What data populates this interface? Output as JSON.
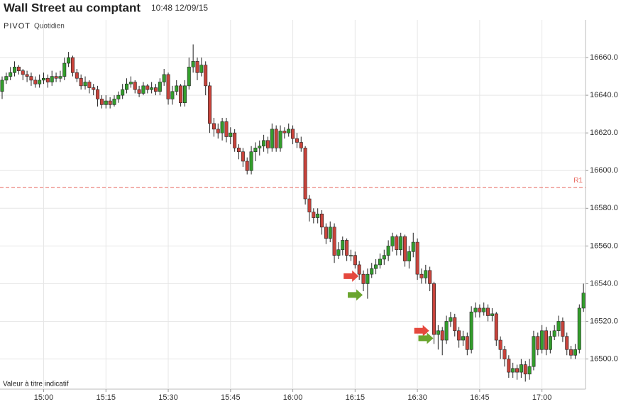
{
  "header": {
    "title": "Wall Street au comptant",
    "timestamp": "10:48 12/09/15",
    "indicator": "PIVOT",
    "period": "Quotidien"
  },
  "footer": "Valeur à titre indicatif",
  "chart_data": {
    "type": "candlestick",
    "x": [
      "14:50",
      "14:51",
      "14:52",
      "14:53",
      "14:54",
      "14:55",
      "14:56",
      "14:57",
      "14:58",
      "14:59",
      "15:00",
      "15:01",
      "15:02",
      "15:03",
      "15:04",
      "15:05",
      "15:06",
      "15:07",
      "15:08",
      "15:09",
      "15:10",
      "15:11",
      "15:12",
      "15:13",
      "15:14",
      "15:15",
      "15:16",
      "15:17",
      "15:18",
      "15:19",
      "15:20",
      "15:21",
      "15:22",
      "15:23",
      "15:24",
      "15:25",
      "15:26",
      "15:27",
      "15:28",
      "15:29",
      "15:30",
      "15:31",
      "15:32",
      "15:33",
      "15:34",
      "15:35",
      "15:36",
      "15:37",
      "15:38",
      "15:39",
      "15:40",
      "15:41",
      "15:42",
      "15:43",
      "15:44",
      "15:45",
      "15:46",
      "15:47",
      "15:48",
      "15:49",
      "15:50",
      "15:51",
      "15:52",
      "15:53",
      "15:54",
      "15:55",
      "15:56",
      "15:57",
      "15:58",
      "15:59",
      "16:00",
      "16:01",
      "16:02",
      "16:03",
      "16:04",
      "16:05",
      "16:06",
      "16:07",
      "16:08",
      "16:09",
      "16:10",
      "16:11",
      "16:12",
      "16:13",
      "16:14",
      "16:15",
      "16:16",
      "16:17",
      "16:18",
      "16:19",
      "16:20",
      "16:21",
      "16:22",
      "16:23",
      "16:24",
      "16:25",
      "16:26",
      "16:27",
      "16:28",
      "16:29",
      "16:30",
      "16:31",
      "16:32",
      "16:33",
      "16:34",
      "16:35",
      "16:36",
      "16:37",
      "16:38",
      "16:39",
      "16:40",
      "16:41",
      "16:42",
      "16:43",
      "16:44",
      "16:45",
      "16:46",
      "16:47",
      "16:48",
      "16:49",
      "16:50",
      "16:51",
      "16:52",
      "16:53",
      "16:54",
      "16:55",
      "16:56",
      "16:57",
      "16:58",
      "16:59",
      "17:00",
      "17:01",
      "17:02",
      "17:03",
      "17:04",
      "17:05",
      "17:06",
      "17:07",
      "17:08",
      "17:09",
      "17:10"
    ],
    "open": [
      16642,
      16648,
      16650,
      16652,
      16655,
      16653,
      16651,
      16650,
      16648,
      16646,
      16648,
      16649,
      16647,
      16650,
      16649,
      16650,
      16657,
      16660,
      16652,
      16649,
      16645,
      16647,
      16644,
      16643,
      16638,
      16635,
      16637,
      16635,
      16638,
      16640,
      16643,
      16646,
      16647,
      16643,
      16641,
      16645,
      16643,
      16644,
      16642,
      16647,
      16651,
      16638,
      16642,
      16645,
      16636,
      16645,
      16655,
      16658,
      16652,
      16656,
      16645,
      16625,
      16622,
      16620,
      16626,
      16618,
      16620,
      16612,
      16610,
      16605,
      16600,
      16610,
      16612,
      16613,
      16616,
      16612,
      16622,
      16612,
      16621,
      16620,
      16622,
      16617,
      16615,
      16612,
      16585,
      16578,
      16575,
      16577,
      16570,
      16564,
      16570,
      16555,
      16558,
      16563,
      16555,
      16555,
      16550,
      16545,
      16540,
      16545,
      16548,
      16550,
      16553,
      16555,
      16560,
      16565,
      16558,
      16565,
      16552,
      16557,
      16562,
      16545,
      16543,
      16547,
      16540,
      16513,
      16515,
      16510,
      16520,
      16522,
      16515,
      16510,
      16512,
      16505,
      16525,
      16527,
      16525,
      16527,
      16523,
      16524,
      16510,
      16505,
      16500,
      16493,
      16495,
      16493,
      16497,
      16492,
      16496,
      16512,
      16505,
      16515,
      16505,
      16512,
      16515,
      16520,
      16512,
      16505,
      16502,
      16505,
      16527
    ],
    "high": [
      16650,
      16652,
      16655,
      16658,
      16656,
      16654,
      16653,
      16652,
      16650,
      16651,
      16652,
      16651,
      16653,
      16652,
      16653,
      16660,
      16663,
      16661,
      16654,
      16651,
      16650,
      16648,
      16646,
      16645,
      16640,
      16640,
      16639,
      16640,
      16642,
      16646,
      16649,
      16650,
      16648,
      16645,
      16647,
      16646,
      16647,
      16646,
      16649,
      16654,
      16652,
      16645,
      16648,
      16646,
      16648,
      16660,
      16667,
      16660,
      16660,
      16658,
      16647,
      16628,
      16625,
      16628,
      16628,
      16623,
      16622,
      16614,
      16612,
      16607,
      16613,
      16615,
      16616,
      16619,
      16618,
      16625,
      16624,
      16624,
      16623,
      16625,
      16624,
      16620,
      16618,
      16613,
      16587,
      16580,
      16580,
      16579,
      16572,
      16573,
      16572,
      16562,
      16565,
      16564,
      16558,
      16557,
      16552,
      16547,
      16548,
      16551,
      16553,
      16556,
      16558,
      16563,
      16567,
      16566,
      16567,
      16566,
      16560,
      16567,
      16564,
      16548,
      16550,
      16549,
      16541,
      16518,
      16517,
      16523,
      16525,
      16524,
      16517,
      16515,
      16514,
      16528,
      16530,
      16529,
      16530,
      16529,
      16527,
      16525,
      16512,
      16507,
      16502,
      16498,
      16497,
      16500,
      16499,
      16500,
      16515,
      16514,
      16518,
      16517,
      16515,
      16518,
      16523,
      16522,
      16514,
      16507,
      16508,
      16529,
      16540
    ],
    "low": [
      16638,
      16646,
      16648,
      16650,
      16651,
      16648,
      16647,
      16645,
      16644,
      16644,
      16646,
      16644,
      16645,
      16647,
      16647,
      16648,
      16655,
      16650,
      16647,
      16643,
      16643,
      16641,
      16640,
      16634,
      16633,
      16633,
      16633,
      16634,
      16636,
      16638,
      16641,
      16644,
      16641,
      16639,
      16640,
      16641,
      16641,
      16640,
      16640,
      16645,
      16635,
      16635,
      16640,
      16634,
      16634,
      16643,
      16652,
      16648,
      16650,
      16640,
      16620,
      16618,
      16617,
      16616,
      16615,
      16614,
      16610,
      16606,
      16602,
      16598,
      16598,
      16605,
      16608,
      16610,
      16609,
      16610,
      16610,
      16610,
      16617,
      16618,
      16614,
      16612,
      16610,
      16582,
      16573,
      16572,
      16572,
      16566,
      16561,
      16562,
      16551,
      16553,
      16555,
      16552,
      16552,
      16548,
      16542,
      16536,
      16532,
      16543,
      16545,
      16548,
      16550,
      16552,
      16557,
      16555,
      16555,
      16549,
      16548,
      16554,
      16542,
      16540,
      16540,
      16536,
      16508,
      16505,
      16502,
      16508,
      16517,
      16512,
      16506,
      16507,
      16502,
      16503,
      16522,
      16522,
      16523,
      16520,
      16520,
      16507,
      16500,
      16496,
      16490,
      16490,
      16489,
      16490,
      16488,
      16489,
      16494,
      16502,
      16503,
      16502,
      16503,
      16510,
      16512,
      16509,
      16502,
      16500,
      16500,
      16503,
      16525
    ],
    "close": [
      16648,
      16650,
      16652,
      16655,
      16653,
      16651,
      16650,
      16648,
      16646,
      16648,
      16649,
      16647,
      16650,
      16649,
      16650,
      16657,
      16660,
      16652,
      16649,
      16645,
      16647,
      16644,
      16643,
      16638,
      16635,
      16637,
      16635,
      16638,
      16640,
      16643,
      16646,
      16647,
      16643,
      16641,
      16645,
      16643,
      16644,
      16642,
      16647,
      16651,
      16638,
      16642,
      16645,
      16636,
      16645,
      16655,
      16658,
      16652,
      16656,
      16645,
      16625,
      16622,
      16620,
      16626,
      16618,
      16620,
      16612,
      16610,
      16605,
      16600,
      16610,
      16612,
      16613,
      16616,
      16612,
      16622,
      16612,
      16621,
      16620,
      16622,
      16617,
      16615,
      16612,
      16585,
      16578,
      16575,
      16577,
      16570,
      16564,
      16570,
      16555,
      16558,
      16563,
      16555,
      16555,
      16550,
      16545,
      16540,
      16545,
      16548,
      16550,
      16553,
      16555,
      16560,
      16565,
      16558,
      16565,
      16552,
      16557,
      16562,
      16545,
      16543,
      16547,
      16540,
      16513,
      16515,
      16510,
      16520,
      16522,
      16515,
      16510,
      16512,
      16505,
      16525,
      16527,
      16525,
      16527,
      16523,
      16524,
      16510,
      16505,
      16500,
      16493,
      16495,
      16493,
      16497,
      16492,
      16496,
      16512,
      16505,
      16515,
      16505,
      16512,
      16515,
      16520,
      16512,
      16505,
      16502,
      16505,
      16527,
      16535
    ],
    "up_color": "#339e2c",
    "down_color": "#c9433b",
    "xlim": [
      "14:50",
      "17:11"
    ],
    "xticks": [
      "15:00",
      "15:15",
      "15:30",
      "15:45",
      "16:00",
      "16:15",
      "16:30",
      "16:45",
      "17:00"
    ],
    "ylim": [
      16484,
      16680
    ],
    "yticks": [
      {
        "value": 16500,
        "label": "16500.0"
      },
      {
        "value": 16520,
        "label": "16520.0"
      },
      {
        "value": 16540,
        "label": "16540.0"
      },
      {
        "value": 16560,
        "label": "16560.0"
      },
      {
        "value": 16580,
        "label": "16580.0"
      },
      {
        "value": 16600,
        "label": "16600.0"
      },
      {
        "value": 16620,
        "label": "16620.0"
      },
      {
        "value": 16640,
        "label": "16640.0"
      },
      {
        "value": 16660,
        "label": "16660.0"
      }
    ],
    "grid": true,
    "pivot": {
      "label": "R1",
      "value": 16591,
      "color": "#e8685f"
    },
    "markers": [
      {
        "x": "16:16",
        "y": 16544,
        "color": "#e5483d"
      },
      {
        "x": "16:17",
        "y": 16534,
        "color": "#6aa52e"
      },
      {
        "x": "16:33",
        "y": 16515,
        "color": "#e5483d"
      },
      {
        "x": "16:34",
        "y": 16511,
        "color": "#6aa52e"
      }
    ]
  }
}
